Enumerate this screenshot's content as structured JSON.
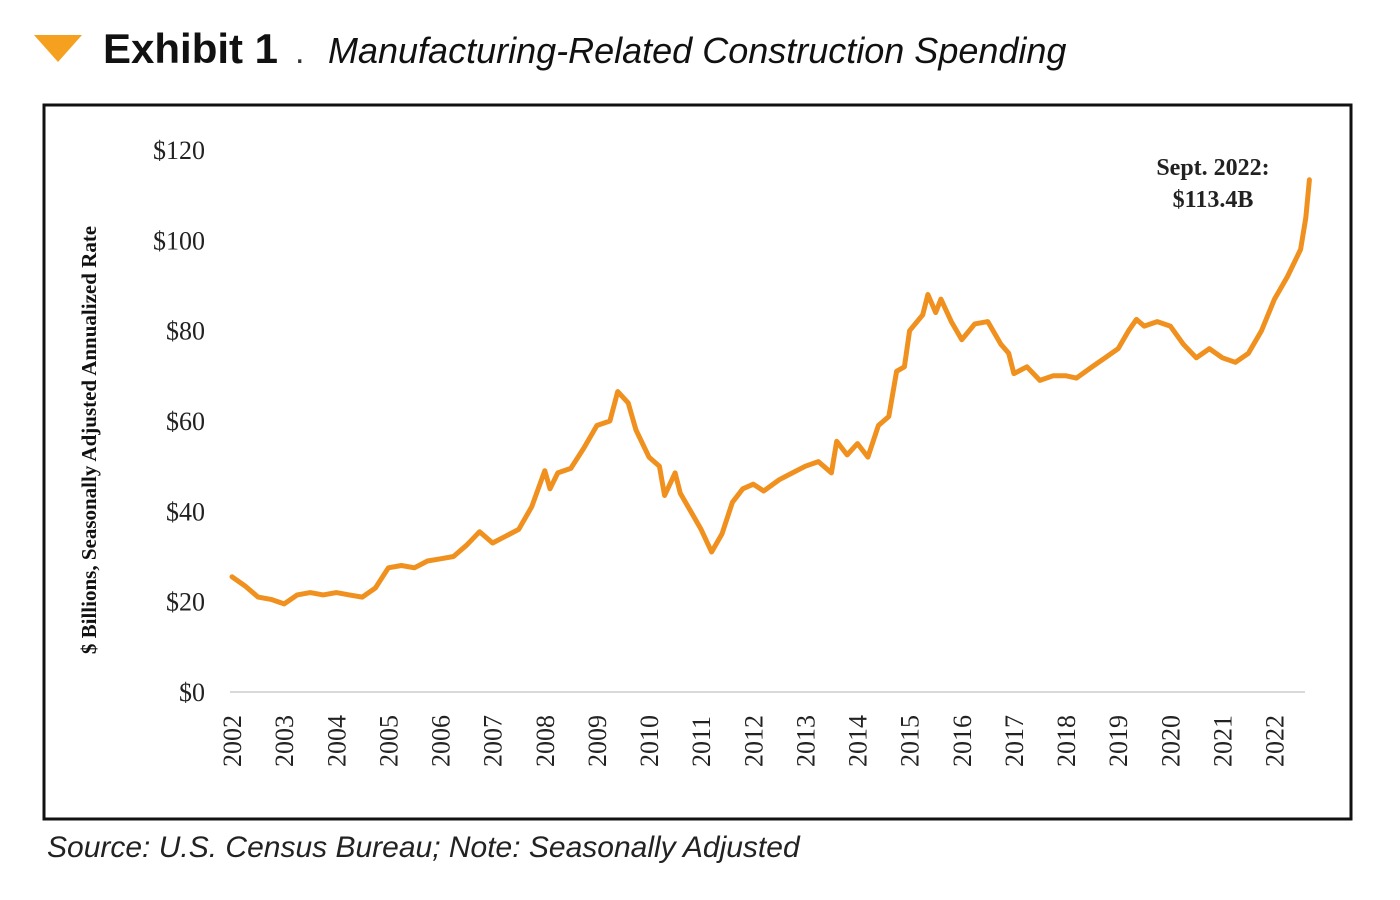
{
  "chart_data": {
    "type": "line",
    "exhibit": "Exhibit 1",
    "separator": ".",
    "title": "Manufacturing-Related Construction Spending",
    "ylabel": "$ Billions, Seasonally Adjusted Annualized Rate",
    "source": "Source: U.S. Census Bureau; Note: Seasonally Adjusted",
    "annotation": [
      "Sept. 2022:",
      "$113.4B"
    ],
    "x": [
      2002.0,
      2002.25,
      2002.5,
      2002.75,
      2003.0,
      2003.25,
      2003.5,
      2003.75,
      2004.0,
      2004.25,
      2004.5,
      2004.75,
      2005.0,
      2005.25,
      2005.5,
      2005.75,
      2006.0,
      2006.25,
      2006.5,
      2006.75,
      2007.0,
      2007.25,
      2007.5,
      2007.75,
      2008.0,
      2008.1,
      2008.25,
      2008.5,
      2008.75,
      2009.0,
      2009.25,
      2009.4,
      2009.6,
      2009.75,
      2010.0,
      2010.2,
      2010.3,
      2010.5,
      2010.6,
      2010.8,
      2011.0,
      2011.2,
      2011.4,
      2011.6,
      2011.8,
      2012.0,
      2012.2,
      2012.5,
      2012.75,
      2013.0,
      2013.25,
      2013.5,
      2013.6,
      2013.8,
      2014.0,
      2014.2,
      2014.4,
      2014.6,
      2014.75,
      2014.9,
      2015.0,
      2015.25,
      2015.35,
      2015.5,
      2015.6,
      2015.8,
      2016.0,
      2016.25,
      2016.5,
      2016.75,
      2016.9,
      2017.0,
      2017.25,
      2017.5,
      2017.75,
      2018.0,
      2018.2,
      2018.5,
      2018.75,
      2019.0,
      2019.2,
      2019.35,
      2019.5,
      2019.75,
      2020.0,
      2020.25,
      2020.5,
      2020.75,
      2021.0,
      2021.25,
      2021.5,
      2021.75,
      2022.0,
      2022.25,
      2022.5,
      2022.6,
      2022.67
    ],
    "series": [
      {
        "name": "Manufacturing-Related Construction Spending",
        "color": "#f0901e",
        "values": [
          25.5,
          23.5,
          21,
          20.5,
          19.5,
          21.5,
          22,
          21.5,
          22,
          21.5,
          21,
          23,
          27.5,
          28,
          27.5,
          29,
          29.5,
          30,
          32.5,
          35.5,
          33,
          34.5,
          36,
          41,
          49,
          45,
          48.5,
          49.5,
          54,
          59,
          60,
          66.5,
          64,
          58,
          52,
          50,
          43.5,
          48.5,
          44,
          40,
          36,
          31,
          35,
          42,
          45,
          46,
          44.5,
          47,
          48.5,
          50,
          51,
          48.5,
          55.5,
          52.5,
          55,
          52,
          59,
          61,
          71,
          72,
          80,
          83.5,
          88,
          84,
          87,
          82,
          78,
          81.5,
          82,
          77,
          75,
          70.5,
          72,
          69,
          70,
          70,
          69.5,
          72,
          74,
          76,
          80,
          82.5,
          81,
          82,
          81,
          77,
          74,
          76,
          74,
          73,
          75,
          80,
          87,
          92,
          98,
          105,
          113.4
        ]
      }
    ],
    "xlim": [
      2002,
      2022.7
    ],
    "xticks": [
      2002,
      2003,
      2004,
      2005,
      2006,
      2007,
      2008,
      2009,
      2010,
      2011,
      2012,
      2013,
      2014,
      2015,
      2016,
      2017,
      2018,
      2019,
      2020,
      2021,
      2022
    ],
    "ylim": [
      0,
      120
    ],
    "yticks": [
      {
        "value": 0,
        "label": "$0"
      },
      {
        "value": 20,
        "label": "$20"
      },
      {
        "value": 40,
        "label": "$40"
      },
      {
        "value": 60,
        "label": "$60"
      },
      {
        "value": 80,
        "label": "$80"
      },
      {
        "value": 100,
        "label": "$100"
      },
      {
        "value": 120,
        "label": "$120"
      }
    ],
    "grid": false
  }
}
